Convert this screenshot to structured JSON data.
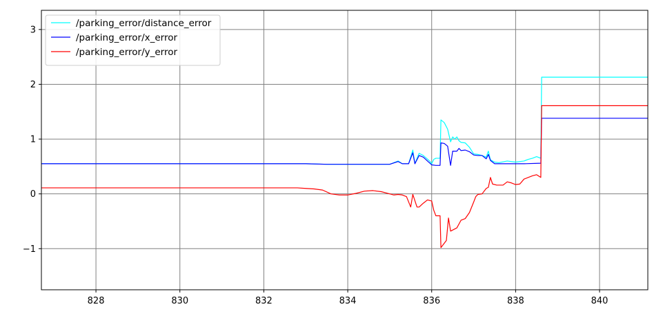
{
  "chart_data": {
    "type": "line",
    "title": "",
    "xlabel": "",
    "ylabel": "",
    "xlim": [
      826.7,
      841.15
    ],
    "ylim": [
      -1.75,
      3.35
    ],
    "xticks": [
      828,
      830,
      832,
      834,
      836,
      838,
      840
    ],
    "yticks": [
      -1,
      0,
      1,
      2,
      3
    ],
    "ytick_labels": [
      "−1",
      "0",
      "1",
      "2",
      "3"
    ],
    "grid": true,
    "grid_color": "#808080",
    "legend_position": "top-left",
    "series": [
      {
        "name": "/parking_error/distance_error",
        "color": "#00ffff",
        "points": [
          [
            826.7,
            0.55
          ],
          [
            833.0,
            0.55
          ],
          [
            833.5,
            0.54
          ],
          [
            835.0,
            0.54
          ],
          [
            835.2,
            0.6
          ],
          [
            835.3,
            0.55
          ],
          [
            835.45,
            0.55
          ],
          [
            835.55,
            0.8
          ],
          [
            835.6,
            0.55
          ],
          [
            835.7,
            0.74
          ],
          [
            835.8,
            0.7
          ],
          [
            835.95,
            0.6
          ],
          [
            836.0,
            0.55
          ],
          [
            836.05,
            0.63
          ],
          [
            836.1,
            0.65
          ],
          [
            836.2,
            0.65
          ],
          [
            836.22,
            1.35
          ],
          [
            836.3,
            1.3
          ],
          [
            836.38,
            1.18
          ],
          [
            836.45,
            0.95
          ],
          [
            836.5,
            1.04
          ],
          [
            836.55,
            1.0
          ],
          [
            836.6,
            1.04
          ],
          [
            836.65,
            0.97
          ],
          [
            836.7,
            0.94
          ],
          [
            836.8,
            0.93
          ],
          [
            836.9,
            0.85
          ],
          [
            837.0,
            0.73
          ],
          [
            837.1,
            0.72
          ],
          [
            837.2,
            0.7
          ],
          [
            837.3,
            0.67
          ],
          [
            837.35,
            0.78
          ],
          [
            837.4,
            0.62
          ],
          [
            837.5,
            0.58
          ],
          [
            837.6,
            0.57
          ],
          [
            837.8,
            0.6
          ],
          [
            838.0,
            0.58
          ],
          [
            838.2,
            0.6
          ],
          [
            838.3,
            0.63
          ],
          [
            838.4,
            0.65
          ],
          [
            838.5,
            0.68
          ],
          [
            838.6,
            0.65
          ],
          [
            838.62,
            2.13
          ],
          [
            841.15,
            2.13
          ]
        ]
      },
      {
        "name": "/parking_error/x_error",
        "color": "#0000ff",
        "points": [
          [
            826.7,
            0.55
          ],
          [
            833.0,
            0.55
          ],
          [
            833.5,
            0.54
          ],
          [
            835.0,
            0.54
          ],
          [
            835.2,
            0.59
          ],
          [
            835.3,
            0.55
          ],
          [
            835.45,
            0.55
          ],
          [
            835.55,
            0.75
          ],
          [
            835.6,
            0.55
          ],
          [
            835.7,
            0.7
          ],
          [
            835.8,
            0.67
          ],
          [
            835.9,
            0.6
          ],
          [
            836.0,
            0.53
          ],
          [
            836.1,
            0.52
          ],
          [
            836.2,
            0.52
          ],
          [
            836.22,
            0.93
          ],
          [
            836.3,
            0.92
          ],
          [
            836.38,
            0.87
          ],
          [
            836.45,
            0.52
          ],
          [
            836.5,
            0.78
          ],
          [
            836.6,
            0.78
          ],
          [
            836.65,
            0.83
          ],
          [
            836.7,
            0.79
          ],
          [
            836.8,
            0.8
          ],
          [
            836.9,
            0.77
          ],
          [
            837.0,
            0.71
          ],
          [
            837.1,
            0.7
          ],
          [
            837.2,
            0.7
          ],
          [
            837.3,
            0.64
          ],
          [
            837.35,
            0.72
          ],
          [
            837.4,
            0.61
          ],
          [
            837.5,
            0.55
          ],
          [
            837.6,
            0.55
          ],
          [
            837.8,
            0.55
          ],
          [
            838.0,
            0.55
          ],
          [
            838.2,
            0.55
          ],
          [
            838.6,
            0.56
          ],
          [
            838.62,
            1.38
          ],
          [
            841.15,
            1.38
          ]
        ]
      },
      {
        "name": "/parking_error/y_error",
        "color": "#ff0000",
        "points": [
          [
            826.7,
            0.11
          ],
          [
            832.8,
            0.11
          ],
          [
            833.0,
            0.1
          ],
          [
            833.2,
            0.09
          ],
          [
            833.4,
            0.07
          ],
          [
            833.6,
            0.0
          ],
          [
            833.8,
            -0.02
          ],
          [
            834.0,
            -0.02
          ],
          [
            834.2,
            0.01
          ],
          [
            834.4,
            0.05
          ],
          [
            834.6,
            0.06
          ],
          [
            834.8,
            0.04
          ],
          [
            835.0,
            0.0
          ],
          [
            835.1,
            -0.02
          ],
          [
            835.2,
            -0.01
          ],
          [
            835.3,
            -0.02
          ],
          [
            835.4,
            -0.05
          ],
          [
            835.5,
            -0.24
          ],
          [
            835.55,
            -0.01
          ],
          [
            835.65,
            -0.24
          ],
          [
            835.7,
            -0.24
          ],
          [
            835.8,
            -0.17
          ],
          [
            835.9,
            -0.11
          ],
          [
            836.0,
            -0.13
          ],
          [
            836.05,
            -0.3
          ],
          [
            836.1,
            -0.4
          ],
          [
            836.2,
            -0.4
          ],
          [
            836.22,
            -0.98
          ],
          [
            836.35,
            -0.85
          ],
          [
            836.4,
            -0.44
          ],
          [
            836.45,
            -0.68
          ],
          [
            836.6,
            -0.62
          ],
          [
            836.7,
            -0.48
          ],
          [
            836.8,
            -0.45
          ],
          [
            836.9,
            -0.34
          ],
          [
            837.0,
            -0.15
          ],
          [
            837.05,
            -0.05
          ],
          [
            837.1,
            -0.01
          ],
          [
            837.2,
            0.0
          ],
          [
            837.3,
            0.1
          ],
          [
            837.35,
            0.12
          ],
          [
            837.4,
            0.3
          ],
          [
            837.45,
            0.18
          ],
          [
            837.55,
            0.16
          ],
          [
            837.7,
            0.16
          ],
          [
            837.8,
            0.22
          ],
          [
            837.9,
            0.2
          ],
          [
            838.0,
            0.17
          ],
          [
            838.1,
            0.18
          ],
          [
            838.2,
            0.27
          ],
          [
            838.3,
            0.3
          ],
          [
            838.4,
            0.33
          ],
          [
            838.5,
            0.35
          ],
          [
            838.6,
            0.3
          ],
          [
            838.62,
            1.61
          ],
          [
            841.15,
            1.61
          ]
        ]
      }
    ]
  }
}
